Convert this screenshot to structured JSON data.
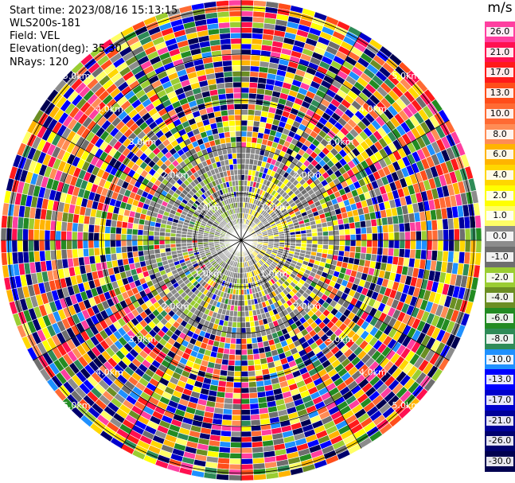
{
  "info": {
    "start_time": "Start time: 2023/08/16 15:13:15",
    "station": "WLS200s-181",
    "field": "Field: VEL",
    "elevation": "Elevation(deg): 35.30",
    "nrays": "NRays: 120"
  },
  "colorbar": {
    "unit": "m/s",
    "entries": [
      {
        "label": "26.0",
        "color": "#ff3fa0"
      },
      {
        "label": "21.0",
        "color": "#ff1050"
      },
      {
        "label": "17.0",
        "color": "#ff1a1a"
      },
      {
        "label": "13.0",
        "color": "#ff4d1a"
      },
      {
        "label": "10.0",
        "color": "#ff6a33"
      },
      {
        "label": "8.0",
        "color": "#ff8c55"
      },
      {
        "label": "6.0",
        "color": "#ffb400"
      },
      {
        "label": "4.0",
        "color": "#ffd700"
      },
      {
        "label": "2.0",
        "color": "#ffff00"
      },
      {
        "label": "1.0",
        "color": "#ffff66"
      },
      {
        "label": "0.0",
        "color": "#8c8c8c"
      },
      {
        "label": "-1.0",
        "color": "#6e6e6e"
      },
      {
        "label": "-2.0",
        "color": "#9acd32"
      },
      {
        "label": "-4.0",
        "color": "#6b8e23"
      },
      {
        "label": "-6.0",
        "color": "#228b22"
      },
      {
        "label": "-8.0",
        "color": "#2e8b57"
      },
      {
        "label": "-10.0",
        "color": "#1e90ff"
      },
      {
        "label": "-13.0",
        "color": "#0000ff"
      },
      {
        "label": "-17.0",
        "color": "#0000cd"
      },
      {
        "label": "-21.0",
        "color": "#000099"
      },
      {
        "label": "-26.0",
        "color": "#00006e"
      },
      {
        "label": "-30.0",
        "color": "#000050"
      }
    ]
  },
  "range_rings": [
    "1.0km",
    "2.0km",
    "3.0km",
    "4.0km",
    "5.0km"
  ]
}
